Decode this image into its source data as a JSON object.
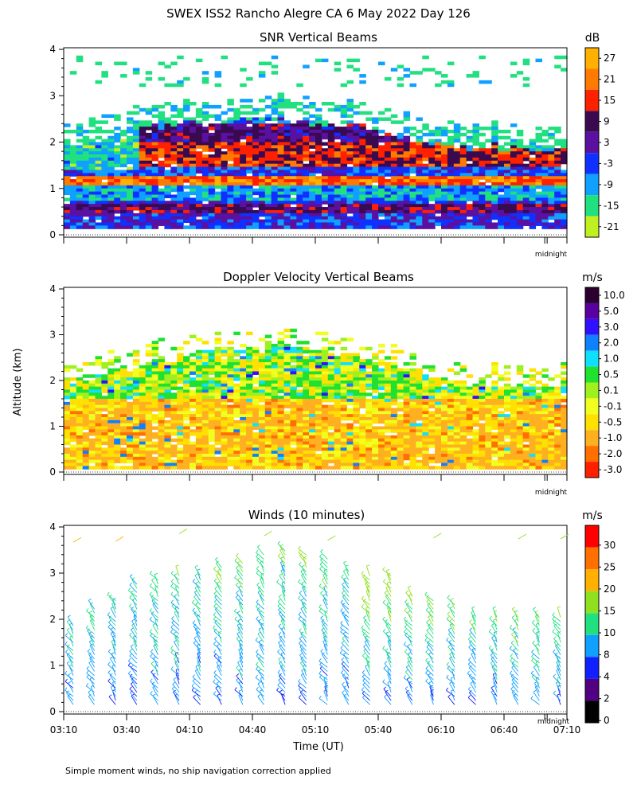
{
  "figure": {
    "title": "SWEX ISS2 Rancho Alegre CA   6 May 2022 Day 126",
    "ylabel": "Altitude (km)",
    "xlabel": "Time (UT)",
    "footnote": "Simple moment winds, no ship navigation correction applied",
    "midnight_label": "midnight"
  },
  "chart_data": [
    {
      "type": "heatmap",
      "title": "SNR Vertical Beams",
      "ylim": [
        0,
        4
      ],
      "yticks": [
        "0",
        "1",
        "2",
        "3",
        "4"
      ],
      "colorbar": {
        "unit": "dB",
        "labels": [
          "27",
          "21",
          "15",
          "9",
          "3",
          "-3",
          "-9",
          "-15",
          "-21"
        ],
        "colors": [
          "#ffb000",
          "#ff7a00",
          "#ff2000",
          "#3a0a50",
          "#5a10a0",
          "#1030ff",
          "#10a0ff",
          "#20e080",
          "#c0f020"
        ]
      },
      "layers": [
        {
          "alt": [
            0.15,
            0.75
          ],
          "snr": -1
        },
        {
          "alt": [
            0.5,
            0.7
          ],
          "snr": 8
        },
        {
          "alt": [
            0.75,
            1.1
          ],
          "snr": -9
        },
        {
          "alt": [
            1.1,
            1.3
          ],
          "snr": 20
        },
        {
          "alt": [
            1.5,
            2.0
          ],
          "snr": 14
        },
        {
          "alt": [
            2.0,
            2.4
          ],
          "snr": 6
        }
      ]
    },
    {
      "type": "heatmap",
      "title": "Doppler Velocity Vertical Beams",
      "ylim": [
        0,
        4
      ],
      "yticks": [
        "0",
        "1",
        "2",
        "3",
        "4"
      ],
      "colorbar": {
        "unit": "m/s",
        "labels": [
          "10.0",
          "5.0",
          "3.0",
          "2.0",
          "1.0",
          "0.5",
          "0.1",
          "-0.1",
          "-0.5",
          "-1.0",
          "-2.0",
          "-3.0"
        ],
        "colors": [
          "#2a0030",
          "#5a00a0",
          "#3010ff",
          "#1080ff",
          "#10e0ff",
          "#20e030",
          "#a0f020",
          "#f0ff20",
          "#ffe000",
          "#ffb020",
          "#ff7000",
          "#ff2000"
        ]
      },
      "layers": [
        {
          "alt": [
            0.1,
            1.6
          ],
          "velocity": -0.8
        },
        {
          "alt": [
            1.6,
            2.6
          ],
          "velocity": 0.1
        },
        {
          "alt": [
            2.6,
            3.2
          ],
          "velocity": 0.7
        }
      ]
    },
    {
      "type": "scatter",
      "title": "Winds (10 minutes)",
      "ylim": [
        0,
        4
      ],
      "yticks": [
        "0",
        "1",
        "2",
        "3",
        "4"
      ],
      "colorbar": {
        "unit": "m/s",
        "labels": [
          "30",
          "25",
          "20",
          "15",
          "10",
          "8",
          "4",
          "2",
          "0"
        ],
        "colors": [
          "#ff0000",
          "#ff7000",
          "#ffb000",
          "#90e020",
          "#20e080",
          "#10a0ff",
          "#1020ff",
          "#500080",
          "#000000"
        ]
      },
      "profiles_count": 24,
      "typical_speed_ms": 6,
      "typical_direction": "northwest"
    }
  ],
  "time_axis": {
    "xlim": [
      "03:10",
      "07:10"
    ],
    "xticks": [
      "03:10",
      "03:40",
      "04:10",
      "04:40",
      "05:10",
      "05:40",
      "06:10",
      "06:40",
      "07:10"
    ],
    "midnight": "07:00"
  }
}
